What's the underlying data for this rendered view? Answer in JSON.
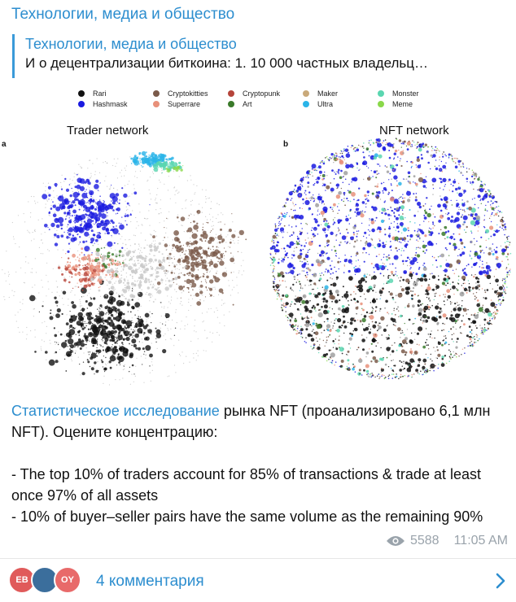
{
  "channel": {
    "name": "Технологии, медиа и общество"
  },
  "reply": {
    "title": "Технологии, медиа и общество",
    "text": "И о децентрализации биткоина:  1. 10 000 частных владельц…"
  },
  "figure": {
    "legend": [
      {
        "label": "Rari",
        "color": "#111111"
      },
      {
        "label": "Hashmask",
        "color": "#1a1ae0"
      },
      {
        "label": "Cryptokitties",
        "color": "#7a5a4a"
      },
      {
        "label": "Superrare",
        "color": "#e8907a"
      },
      {
        "label": "Cryptopunk",
        "color": "#b5443a"
      },
      {
        "label": "Art",
        "color": "#3a7a2a"
      },
      {
        "label": "Maker",
        "color": "#c9a97a"
      },
      {
        "label": "Ultra",
        "color": "#2ab4e8"
      },
      {
        "label": "Monster",
        "color": "#5ad6b0"
      },
      {
        "label": "Meme",
        "color": "#8ad84a"
      }
    ],
    "panel_a": {
      "letter": "a",
      "title": "Trader network"
    },
    "panel_b": {
      "letter": "b",
      "title": "NFT network"
    }
  },
  "message": {
    "link_text": "Статистическое исследование",
    "line1_rest": " рынка NFT (проанализировано 6,1 млн NFT). Оцените концентрацию:",
    "bullet1": "- The top 10% of traders account for 85% of transactions & trade at least once 97% of all assets",
    "bullet2": "- 10% of buyer–seller pairs have the same volume as the remaining 90%"
  },
  "meta": {
    "views": "5588",
    "time": "11:05 AM"
  },
  "comments": {
    "avatars": [
      {
        "initials": "EB",
        "color": "#e05a5a"
      },
      {
        "initials": "",
        "color": "#3b6e9c"
      },
      {
        "initials": "OY",
        "color": "#e86a6a"
      }
    ],
    "label": "4 комментария"
  }
}
